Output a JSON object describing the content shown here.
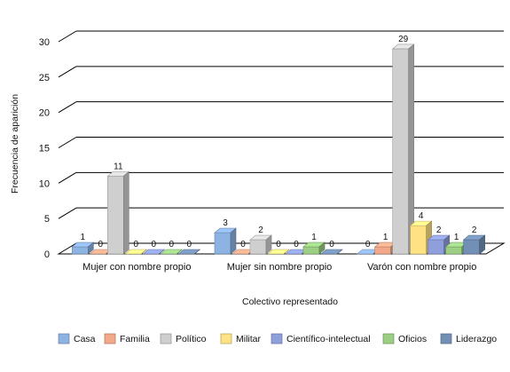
{
  "chart_data": {
    "type": "bar",
    "xlabel": "Colectivo representado",
    "ylabel": "Frecuencia de aparición",
    "ylim": [
      0,
      30
    ],
    "yticks": [
      0,
      5,
      10,
      15,
      20,
      25,
      30
    ],
    "grid": true,
    "legend_position": "bottom",
    "categories": [
      "Mujer con nombre propio",
      "Mujer sin nombre propio",
      "Varón con nombre propio"
    ],
    "series": [
      {
        "name": "Casa",
        "values": [
          1,
          3,
          0
        ],
        "color": "#8db3e2"
      },
      {
        "name": "Familia",
        "values": [
          0,
          0,
          1
        ],
        "color": "#f2a889"
      },
      {
        "name": "Político",
        "values": [
          11,
          2,
          29
        ],
        "color": "#cfcfcf"
      },
      {
        "name": "Militar",
        "values": [
          0,
          0,
          4
        ],
        "color": "#ffe283"
      },
      {
        "name": "Científico-intelectual",
        "values": [
          0,
          0,
          2
        ],
        "color": "#8f9fdc"
      },
      {
        "name": "Oficios",
        "values": [
          0,
          1,
          1
        ],
        "color": "#9ccf84"
      },
      {
        "name": "Liderazgo",
        "values": [
          0,
          0,
          2
        ],
        "color": "#7290b5"
      }
    ]
  }
}
